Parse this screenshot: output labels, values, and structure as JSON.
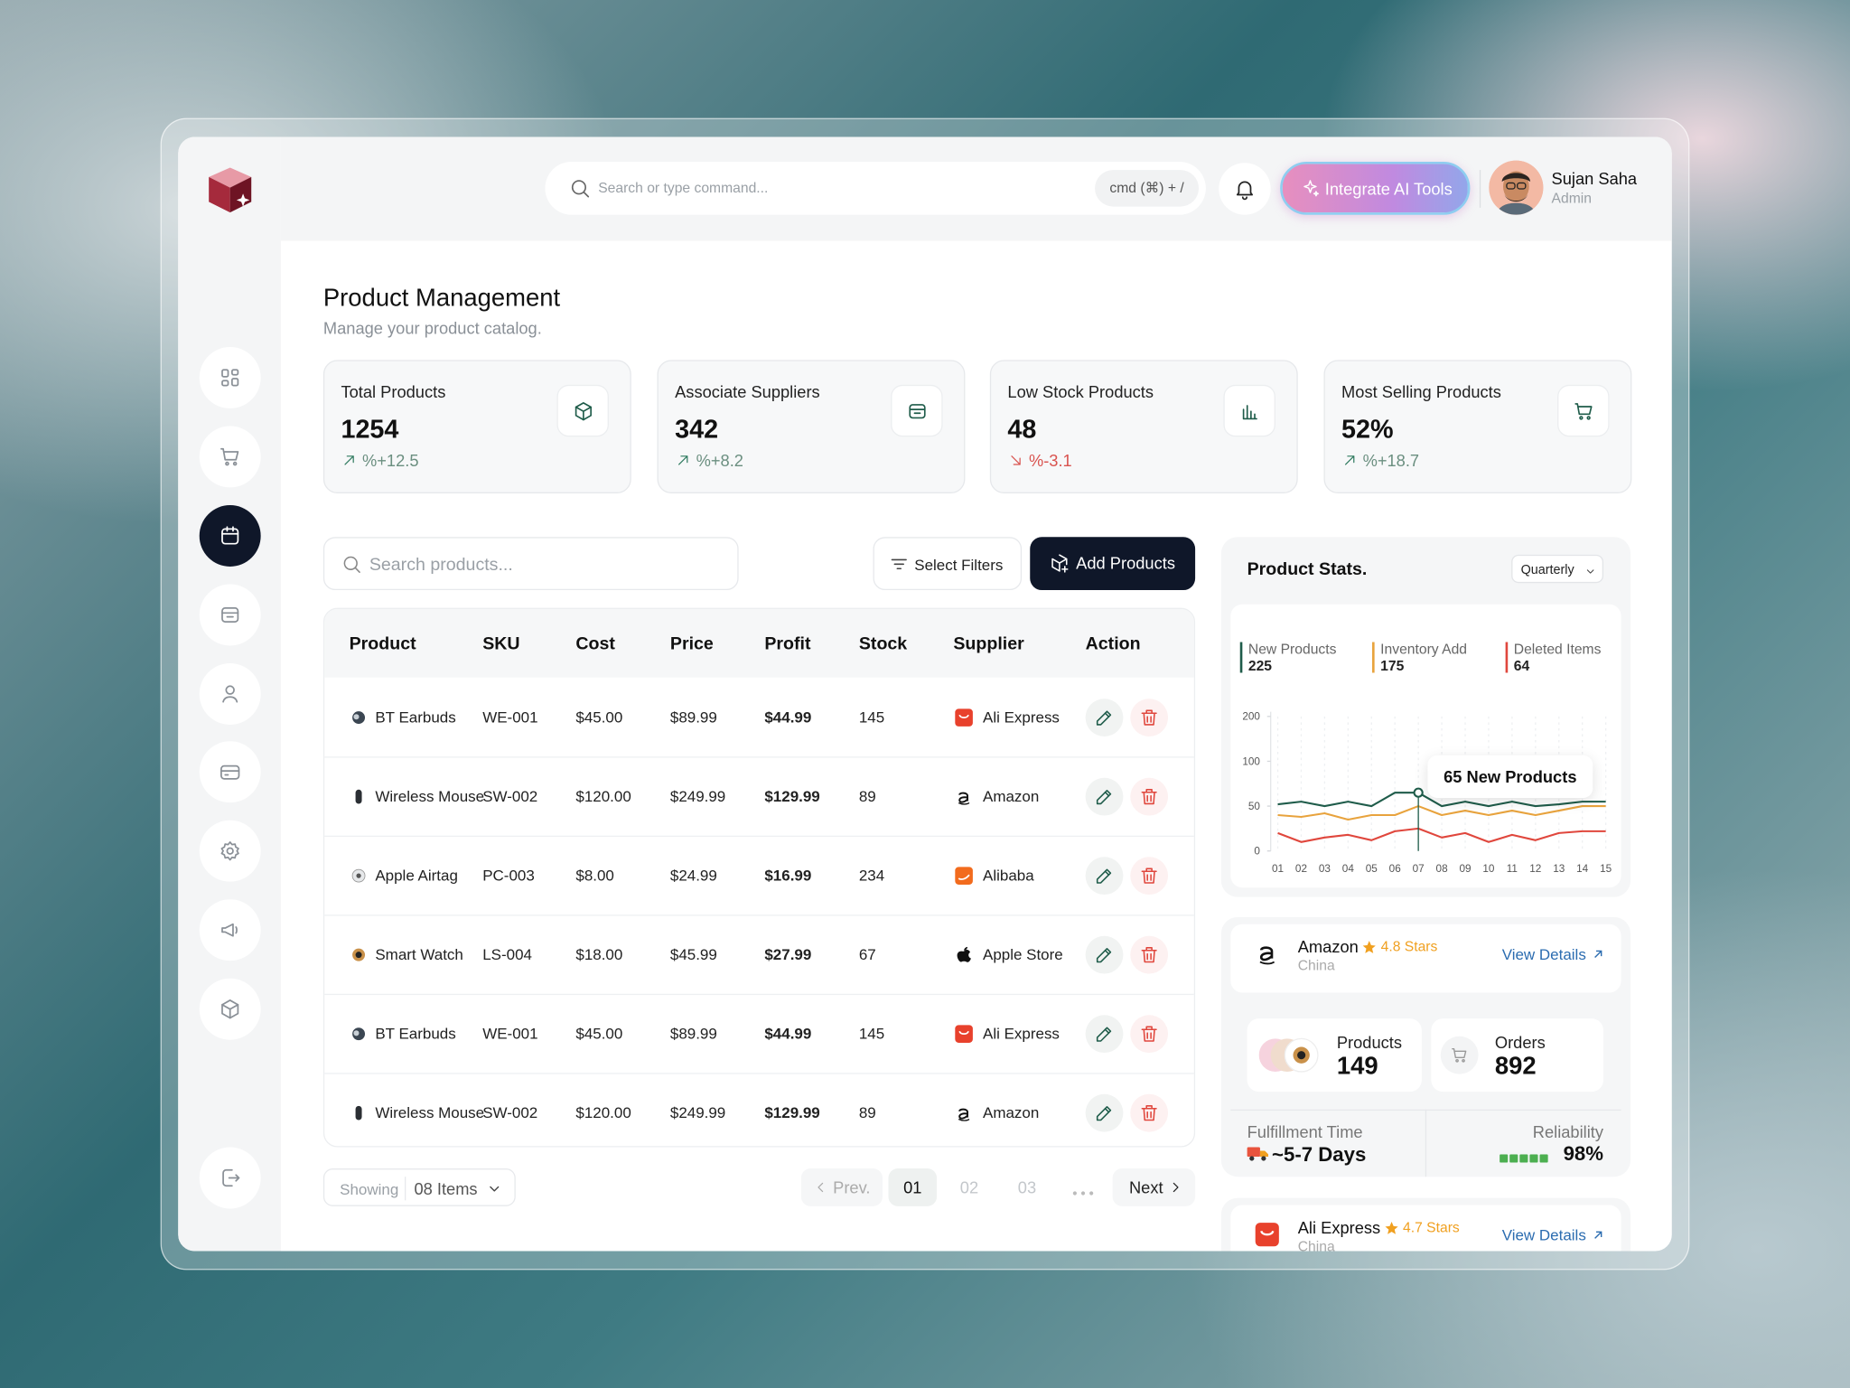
{
  "header": {
    "search_placeholder": "Search or type command...",
    "shortcut": "cmd (⌘) + /",
    "ai_button": "Integrate AI Tools",
    "user": {
      "name": "Sujan Saha",
      "role": "Admin"
    }
  },
  "page": {
    "title": "Product Management",
    "subtitle": "Manage your product catalog."
  },
  "kpis": [
    {
      "label": "Total Products",
      "value": "1254",
      "change": "%+12.5",
      "trend": "up"
    },
    {
      "label": "Associate Suppliers",
      "value": "342",
      "change": "%+8.2",
      "trend": "up"
    },
    {
      "label": "Low Stock Products",
      "value": "48",
      "change": "%-3.1",
      "trend": "down"
    },
    {
      "label": "Most Selling Products",
      "value": "52%",
      "change": "%+18.7",
      "trend": "up"
    }
  ],
  "toolbar": {
    "search_placeholder": "Search products...",
    "filter_button": "Select Filters",
    "add_button": "Add Products"
  },
  "table": {
    "columns": [
      "Product",
      "SKU",
      "Cost",
      "Price",
      "Profit",
      "Stock",
      "Supplier",
      "Action"
    ],
    "rows": [
      [
        "BT Earbuds",
        "WE-001",
        "$45.00",
        "$89.99",
        "$44.99",
        "145",
        "Ali Express"
      ],
      [
        "Wireless Mouse",
        "SW-002",
        "$120.00",
        "$249.99",
        "$129.99",
        "89",
        "Amazon"
      ],
      [
        "Apple Airtag",
        "PC-003",
        "$8.00",
        "$24.99",
        "$16.99",
        "234",
        "Alibaba"
      ],
      [
        "Smart Watch",
        "LS-004",
        "$18.00",
        "$45.99",
        "$27.99",
        "67",
        "Apple Store"
      ],
      [
        "BT Earbuds",
        "WE-001",
        "$45.00",
        "$89.99",
        "$44.99",
        "145",
        "Ali Express"
      ],
      [
        "Wireless Mouse",
        "SW-002",
        "$120.00",
        "$249.99",
        "$129.99",
        "89",
        "Amazon"
      ]
    ]
  },
  "pagination": {
    "showing_label": "Showing",
    "page_size": "08 Items",
    "prev": "Prev.",
    "pages": [
      "01",
      "02",
      "03"
    ],
    "active_page": "01",
    "next": "Next"
  },
  "stats": {
    "title": "Product Stats.",
    "period": "Quarterly",
    "tooltip": {
      "x": "07",
      "text": "65 New Products"
    },
    "chart": {
      "type": "line",
      "x": [
        "01",
        "02",
        "03",
        "04",
        "05",
        "06",
        "07",
        "08",
        "09",
        "10",
        "11",
        "12",
        "13",
        "14",
        "15"
      ],
      "ylim": [
        0,
        200
      ],
      "yticks": [
        0,
        50,
        100,
        200
      ],
      "series": [
        {
          "name": "New Products",
          "total": 225,
          "color": "#1f5c4a",
          "values": [
            52,
            55,
            50,
            55,
            50,
            65,
            65,
            50,
            55,
            50,
            55,
            50,
            52,
            55,
            55
          ]
        },
        {
          "name": "Inventory Add",
          "total": 175,
          "color": "#e8a33d",
          "values": [
            40,
            38,
            42,
            35,
            40,
            40,
            50,
            40,
            45,
            40,
            45,
            40,
            45,
            50,
            50
          ]
        },
        {
          "name": "Deleted Items",
          "total": 64,
          "color": "#e0473d",
          "values": [
            20,
            10,
            15,
            18,
            12,
            22,
            25,
            15,
            20,
            10,
            18,
            12,
            20,
            22,
            22
          ]
        }
      ]
    }
  },
  "suppliers": [
    {
      "name": "Amazon",
      "rating": "4.8 Stars",
      "country": "China",
      "link": "View Details",
      "metrics": [
        {
          "label": "Products",
          "value": 149
        },
        {
          "label": "Orders",
          "value": 892
        }
      ],
      "fulfillment": {
        "label": "Fulfillment Time",
        "value": "~5-7 Days"
      },
      "reliability": {
        "label": "Reliability",
        "value": "98%"
      }
    },
    {
      "name": "Ali Express",
      "rating": "4.7 Stars",
      "country": "China",
      "link": "View Details"
    }
  ]
}
